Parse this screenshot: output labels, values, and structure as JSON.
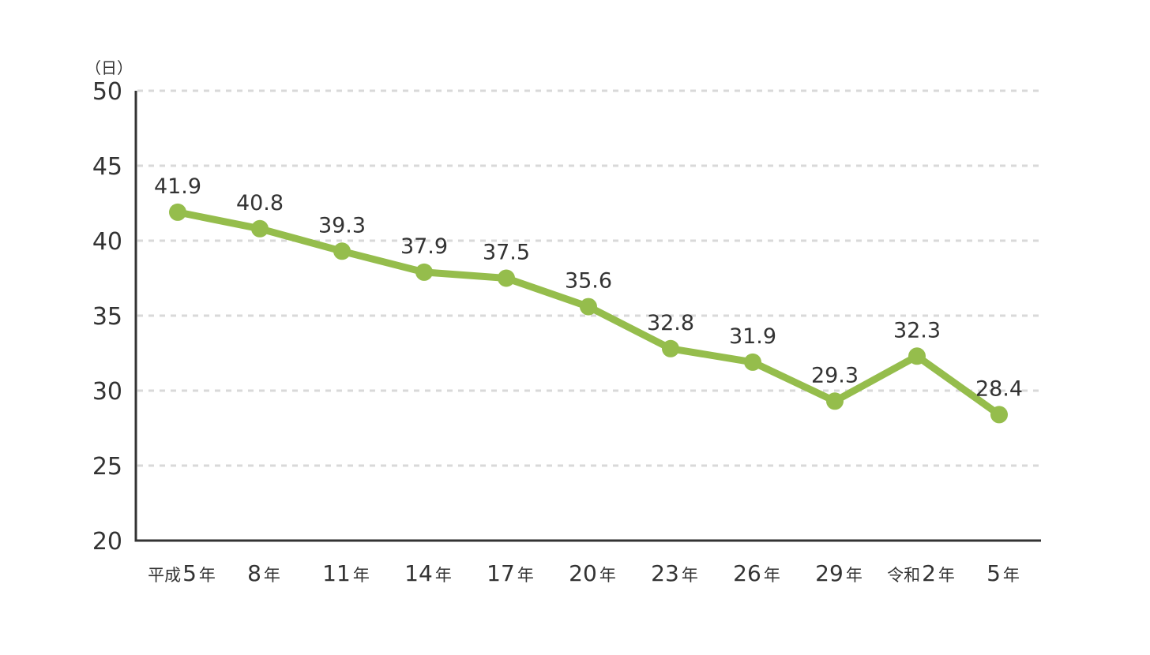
{
  "chart_data": {
    "type": "line",
    "y_unit": "（日）",
    "ylim": [
      20,
      50
    ],
    "yticks": [
      20,
      25,
      30,
      35,
      40,
      45,
      50
    ],
    "grid": true,
    "line_color": "#95bd4c",
    "categories": [
      {
        "prefix": "平成",
        "num": "5",
        "suffix": "年"
      },
      {
        "prefix": "",
        "num": "8",
        "suffix": "年"
      },
      {
        "prefix": "",
        "num": "11",
        "suffix": "年"
      },
      {
        "prefix": "",
        "num": "14",
        "suffix": "年"
      },
      {
        "prefix": "",
        "num": "17",
        "suffix": "年"
      },
      {
        "prefix": "",
        "num": "20",
        "suffix": "年"
      },
      {
        "prefix": "",
        "num": "23",
        "suffix": "年"
      },
      {
        "prefix": "",
        "num": "26",
        "suffix": "年"
      },
      {
        "prefix": "",
        "num": "29",
        "suffix": "年"
      },
      {
        "prefix": "令和",
        "num": "2",
        "suffix": "年"
      },
      {
        "prefix": "",
        "num": "5",
        "suffix": "年"
      }
    ],
    "values": [
      41.9,
      40.8,
      39.3,
      37.9,
      37.5,
      35.6,
      32.8,
      31.9,
      29.3,
      32.3,
      28.4
    ],
    "value_labels": [
      "41.9",
      "40.8",
      "39.3",
      "37.9",
      "37.5",
      "35.6",
      "32.8",
      "31.9",
      "29.3",
      "32.3",
      "28.4"
    ]
  }
}
